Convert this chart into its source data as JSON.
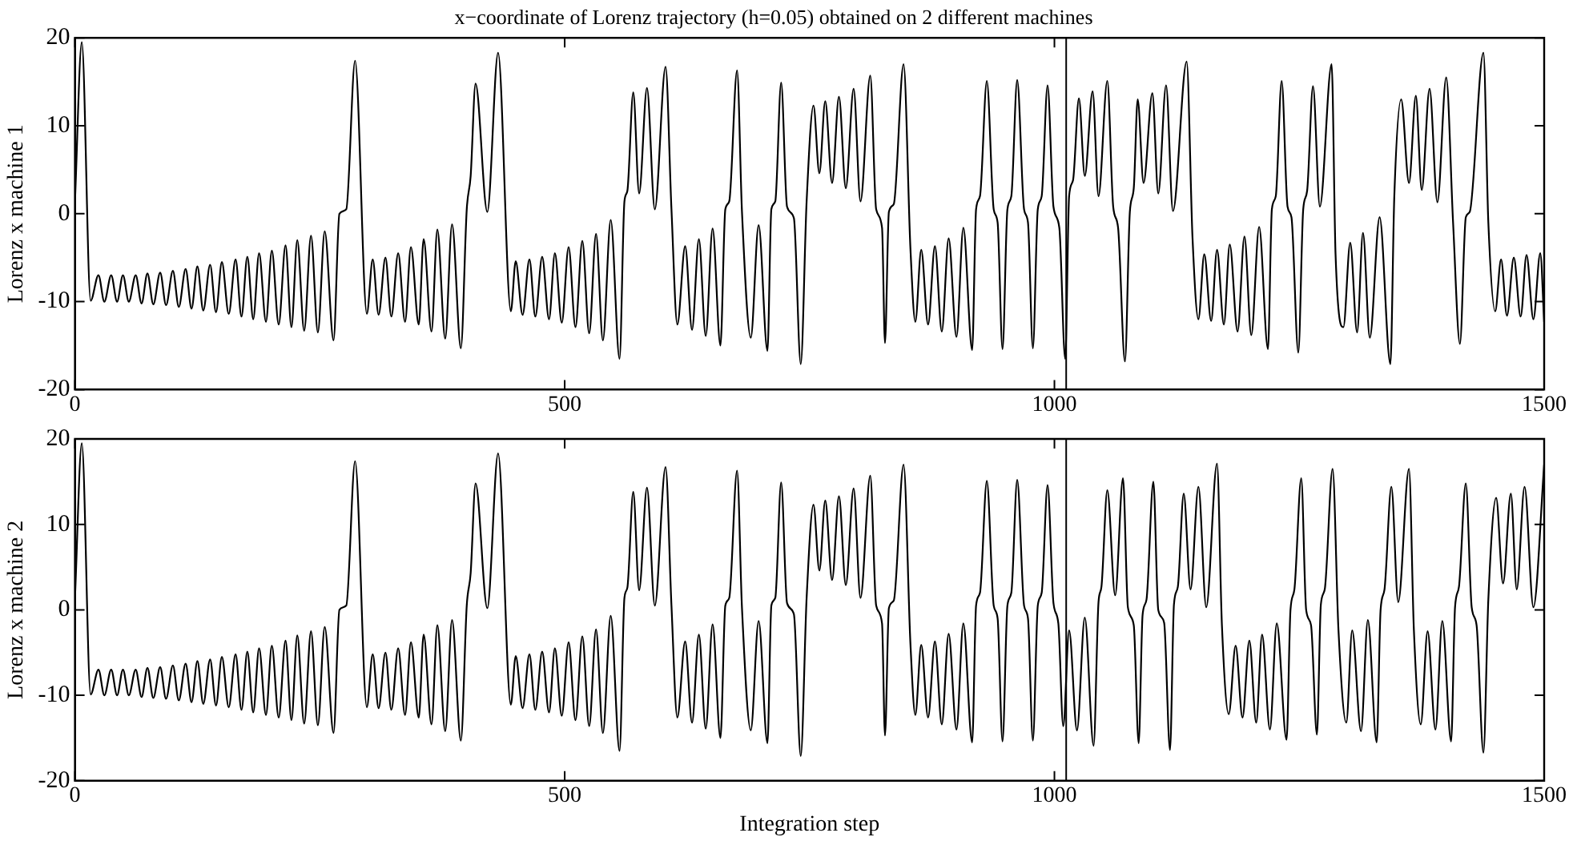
{
  "chart_data": [
    {
      "type": "line",
      "title": "x−coordinate of Lorenz trajectory (h=0.05) obtained on 2 different machines",
      "ylabel": "Lorenz x machine 1",
      "xlim": [
        0,
        1500
      ],
      "xticks": [
        0,
        500,
        1000,
        1500
      ],
      "ylim": [
        -20,
        20
      ],
      "yticks": [
        -20,
        -10,
        0,
        10,
        20
      ],
      "ref_lines": [
        {
          "axis": "x",
          "value": 1012,
          "color": "#000000"
        }
      ],
      "series": [
        {
          "color": "#000000",
          "x": [
            0,
            7,
            16,
            24,
            30,
            37,
            43,
            49,
            55,
            62,
            68,
            74,
            80,
            87,
            93,
            100,
            106,
            113,
            119,
            125,
            131,
            138,
            144,
            150,
            157,
            164,
            170,
            176,
            182,
            188,
            195,
            201,
            208,
            215,
            221,
            227,
            234,
            241,
            248,
            255,
            264,
            270,
            277,
            286,
            298,
            304,
            310,
            317,
            323,
            330,
            337,
            343,
            351,
            356,
            364,
            370,
            378,
            385,
            394,
            400,
            404,
            409,
            421,
            432,
            445,
            450,
            457,
            464,
            470,
            477,
            484,
            490,
            497,
            504,
            511,
            518,
            525,
            532,
            539,
            547,
            556,
            561,
            564,
            570,
            576,
            584,
            592,
            603,
            609,
            615,
            623,
            630,
            637,
            644,
            651,
            659,
            664,
            668,
            676,
            681,
            690,
            698,
            707,
            711,
            715,
            721,
            727,
            734,
            741,
            747,
            754,
            760,
            766,
            773,
            780,
            787,
            795,
            802,
            812,
            818,
            824,
            827,
            831,
            836,
            846,
            853,
            858,
            864,
            871,
            878,
            885,
            892,
            900,
            907,
            916,
            920,
            924,
            931,
            938,
            942,
            947,
            952,
            956,
            962,
            969,
            973,
            978,
            983,
            987,
            993,
            999,
            1005,
            1011,
            1015,
            1019,
            1025,
            1031,
            1039,
            1045,
            1054,
            1060,
            1065,
            1072,
            1077,
            1081,
            1085,
            1091,
            1100,
            1106,
            1114,
            1121,
            1135,
            1141,
            1147,
            1153,
            1160,
            1166,
            1173,
            1179,
            1187,
            1194,
            1201,
            1209,
            1218,
            1222,
            1226,
            1232,
            1238,
            1242,
            1249,
            1254,
            1258,
            1264,
            1271,
            1283,
            1287,
            1295,
            1302,
            1309,
            1315,
            1322,
            1332,
            1343,
            1347,
            1354,
            1362,
            1369,
            1375,
            1383,
            1391,
            1400,
            1407,
            1414,
            1420,
            1424,
            1438,
            1443,
            1450,
            1456,
            1462,
            1469,
            1476,
            1482,
            1489,
            1496,
            1500
          ],
          "values": [
            1.4,
            19.5,
            -9.9,
            -7,
            -10,
            -7,
            -10,
            -7,
            -10,
            -7,
            -10.2,
            -6.8,
            -10.3,
            -6.7,
            -10.4,
            -6.5,
            -10.6,
            -6.3,
            -10.8,
            -6,
            -11,
            -5.8,
            -11.2,
            -5.5,
            -11.4,
            -5.2,
            -11.7,
            -4.9,
            -12,
            -4.5,
            -12.3,
            -4.2,
            -12.6,
            -3.6,
            -12.9,
            -3,
            -13.3,
            -2.5,
            -13.5,
            -2,
            -14.4,
            0,
            0.5,
            17.4,
            -11.4,
            -5.2,
            -11.5,
            -5,
            -11.7,
            -4.5,
            -12.3,
            -3.8,
            -12.6,
            -2.9,
            -13.4,
            -1.8,
            -14.2,
            -1.2,
            -15.3,
            0.5,
            4.3,
            14.8,
            0.2,
            18.3,
            -11.1,
            -5.4,
            -11.5,
            -5.2,
            -11.7,
            -4.9,
            -12,
            -4.5,
            -12.4,
            -3.8,
            -12.9,
            -3.1,
            -13.6,
            -2.3,
            -14.4,
            -0.7,
            -16.5,
            1.4,
            2.6,
            13.8,
            2.3,
            14.3,
            0.5,
            16.7,
            0.5,
            -12.6,
            -3.7,
            -13.2,
            -2.9,
            -13.9,
            -1.7,
            -15,
            0.5,
            1.4,
            16.3,
            0.2,
            -14.1,
            -1.3,
            -15.6,
            0.5,
            1.4,
            14.9,
            0.8,
            -0.5,
            -17.1,
            1.4,
            12.3,
            4.6,
            12.8,
            3.5,
            13.3,
            2.9,
            14.2,
            1.4,
            15.7,
            0.5,
            -1.6,
            -14.7,
            0.2,
            1.1,
            17,
            -4,
            -12.3,
            -4.1,
            -12.6,
            -3.7,
            -13.4,
            -2.8,
            -14,
            -1.6,
            -15.5,
            0.5,
            2,
            15.1,
            0.5,
            -1,
            -15.4,
            0.5,
            2,
            15.2,
            0.5,
            -1,
            -15.3,
            0.5,
            2,
            14.6,
            0.8,
            -1.6,
            -16.5,
            2,
            3.8,
            13.1,
            4.3,
            13.9,
            2,
            15.1,
            0.8,
            -1.6,
            -16.8,
            0.2,
            2.9,
            13,
            3.5,
            13.7,
            2.3,
            14.6,
            0.3,
            17.3,
            -2.8,
            -12,
            -4.6,
            -12.2,
            -4.1,
            -12.6,
            -3.5,
            -13.4,
            -2.6,
            -13.8,
            -1.5,
            -15.4,
            0.5,
            2,
            15.1,
            0.8,
            -0.4,
            -15.8,
            0.5,
            2.6,
            14.5,
            0.8,
            17,
            -4.6,
            -12.9,
            -3.3,
            -13.5,
            -2.2,
            -14.1,
            -0.4,
            -17.1,
            2,
            13,
            3.5,
            13.4,
            2.7,
            14.2,
            1.3,
            15.5,
            -1,
            -14.8,
            -0.4,
            0.2,
            18.3,
            -1,
            -11.1,
            -5.2,
            -11.6,
            -5,
            -11.7,
            -4.7,
            -12,
            -4.5,
            -12.3
          ]
        }
      ]
    },
    {
      "type": "line",
      "xlabel": "Integration step",
      "ylabel": "Lorenz x machine 2",
      "xlim": [
        0,
        1500
      ],
      "xticks": [
        0,
        500,
        1000,
        1500
      ],
      "ylim": [
        -20,
        20
      ],
      "yticks": [
        -20,
        -10,
        0,
        10,
        20
      ],
      "ref_lines": [
        {
          "axis": "x",
          "value": 1012,
          "color": "#000000"
        }
      ],
      "series": [
        {
          "color": "#000000",
          "x": [
            0,
            7,
            16,
            24,
            30,
            37,
            43,
            49,
            55,
            62,
            68,
            74,
            80,
            87,
            93,
            100,
            106,
            113,
            119,
            125,
            131,
            138,
            144,
            150,
            157,
            164,
            170,
            176,
            182,
            188,
            195,
            201,
            208,
            215,
            221,
            227,
            234,
            241,
            248,
            255,
            264,
            270,
            277,
            286,
            298,
            304,
            310,
            317,
            323,
            330,
            337,
            343,
            351,
            356,
            364,
            370,
            378,
            385,
            394,
            400,
            404,
            409,
            421,
            432,
            445,
            450,
            457,
            464,
            470,
            477,
            484,
            490,
            497,
            504,
            511,
            518,
            525,
            532,
            539,
            547,
            556,
            561,
            564,
            570,
            576,
            584,
            592,
            603,
            609,
            615,
            623,
            630,
            637,
            644,
            651,
            659,
            664,
            668,
            676,
            681,
            690,
            698,
            707,
            711,
            715,
            721,
            727,
            734,
            741,
            747,
            754,
            760,
            766,
            773,
            780,
            787,
            795,
            802,
            812,
            818,
            824,
            827,
            831,
            836,
            846,
            853,
            858,
            864,
            871,
            878,
            885,
            892,
            900,
            907,
            916,
            920,
            924,
            931,
            938,
            942,
            947,
            952,
            956,
            962,
            969,
            973,
            978,
            983,
            987,
            993,
            999,
            1004,
            1009,
            1015,
            1023,
            1031,
            1040,
            1045,
            1048,
            1054,
            1062,
            1070,
            1075,
            1081,
            1086,
            1090,
            1094,
            1101,
            1106,
            1112,
            1118,
            1122,
            1126,
            1132,
            1139,
            1147,
            1155,
            1166,
            1171,
            1178,
            1185,
            1192,
            1199,
            1206,
            1212,
            1220,
            1227,
            1237,
            1241,
            1245,
            1252,
            1257,
            1262,
            1268,
            1272,
            1276,
            1284,
            1290,
            1298,
            1304,
            1313,
            1320,
            1329,
            1333,
            1337,
            1344,
            1351,
            1362,
            1367,
            1374,
            1381,
            1389,
            1396,
            1405,
            1409,
            1413,
            1420,
            1426,
            1431,
            1438,
            1443,
            1451,
            1458,
            1466,
            1472,
            1480,
            1489,
            1500
          ],
          "values": [
            1.4,
            19.5,
            -9.9,
            -7,
            -10,
            -7,
            -10,
            -7,
            -10,
            -7,
            -10.2,
            -6.8,
            -10.3,
            -6.7,
            -10.4,
            -6.5,
            -10.6,
            -6.3,
            -10.8,
            -6,
            -11,
            -5.8,
            -11.2,
            -5.5,
            -11.4,
            -5.2,
            -11.7,
            -4.9,
            -12,
            -4.5,
            -12.3,
            -4.2,
            -12.6,
            -3.6,
            -12.9,
            -3,
            -13.3,
            -2.5,
            -13.5,
            -2,
            -14.4,
            0,
            0.5,
            17.4,
            -11.4,
            -5.2,
            -11.5,
            -5,
            -11.7,
            -4.5,
            -12.3,
            -3.8,
            -12.6,
            -2.9,
            -13.4,
            -1.8,
            -14.2,
            -1.2,
            -15.3,
            0.5,
            4.3,
            14.8,
            0.2,
            18.3,
            -11.1,
            -5.4,
            -11.5,
            -5.2,
            -11.7,
            -4.9,
            -12,
            -4.5,
            -12.4,
            -3.8,
            -12.9,
            -3.1,
            -13.6,
            -2.3,
            -14.4,
            -0.7,
            -16.5,
            1.4,
            2.6,
            13.8,
            2.3,
            14.3,
            0.5,
            16.7,
            0.5,
            -12.6,
            -3.7,
            -13.2,
            -2.9,
            -13.9,
            -1.7,
            -15,
            0.5,
            1.4,
            16.3,
            0.2,
            -14.1,
            -1.3,
            -15.6,
            0.5,
            1.4,
            14.9,
            0.8,
            -0.5,
            -17.1,
            1.4,
            12.3,
            4.6,
            12.8,
            3.5,
            13.3,
            2.9,
            14.2,
            1.4,
            15.7,
            0.5,
            -1.6,
            -14.7,
            0.2,
            1.1,
            17,
            -4,
            -12.3,
            -4.1,
            -12.6,
            -3.7,
            -13.4,
            -2.8,
            -14,
            -1.6,
            -15.5,
            0.5,
            2,
            15.1,
            0.5,
            -1,
            -15.4,
            0.5,
            2,
            15.2,
            0.5,
            -1,
            -15.3,
            0.5,
            2,
            14.6,
            0.8,
            -1.6,
            -13.6,
            -2.4,
            -14.1,
            -0.9,
            -15.9,
            0.9,
            2.7,
            14,
            1.7,
            15.4,
            0.3,
            -1.8,
            -15.6,
            -0.6,
            1.2,
            15,
            0,
            -1.5,
            -16.4,
            0.6,
            2.7,
            13.6,
            2.4,
            14.4,
            0.3,
            17.1,
            -1.8,
            -12.2,
            -4.2,
            -12.6,
            -3.6,
            -13.2,
            -2.9,
            -14,
            -1.6,
            -15.2,
            0,
            2.4,
            15.4,
            0,
            -1.8,
            -14.6,
            0.6,
            2.4,
            16.5,
            -2.4,
            -13.2,
            -2.4,
            -14.2,
            -1.2,
            -15.5,
            0,
            2.4,
            14.4,
            0.9,
            16.5,
            -2.4,
            -13.4,
            -2.5,
            -14,
            -1.3,
            -15.4,
            0.3,
            2.7,
            14.8,
            0.3,
            -1.8,
            -16.7,
            1.2,
            13.1,
            3.1,
            13.6,
            2.4,
            14.4,
            0.3,
            17
          ]
        }
      ]
    }
  ]
}
